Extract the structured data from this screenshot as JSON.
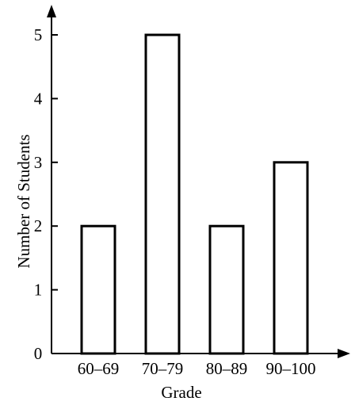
{
  "chart_data": {
    "type": "bar",
    "title": "",
    "xlabel": "Grade",
    "ylabel": "Number of Students",
    "categories": [
      "60–69",
      "70–79",
      "80–89",
      "90–100"
    ],
    "values": [
      2,
      5,
      2,
      3
    ],
    "yticks": [
      "0",
      "1",
      "2",
      "3",
      "4",
      "5"
    ],
    "ylim": [
      0,
      5
    ],
    "grid": false,
    "legend": "none",
    "colors": {
      "bar_fill": "#ffffff",
      "bar_stroke": "#000000",
      "axis": "#000000"
    }
  }
}
